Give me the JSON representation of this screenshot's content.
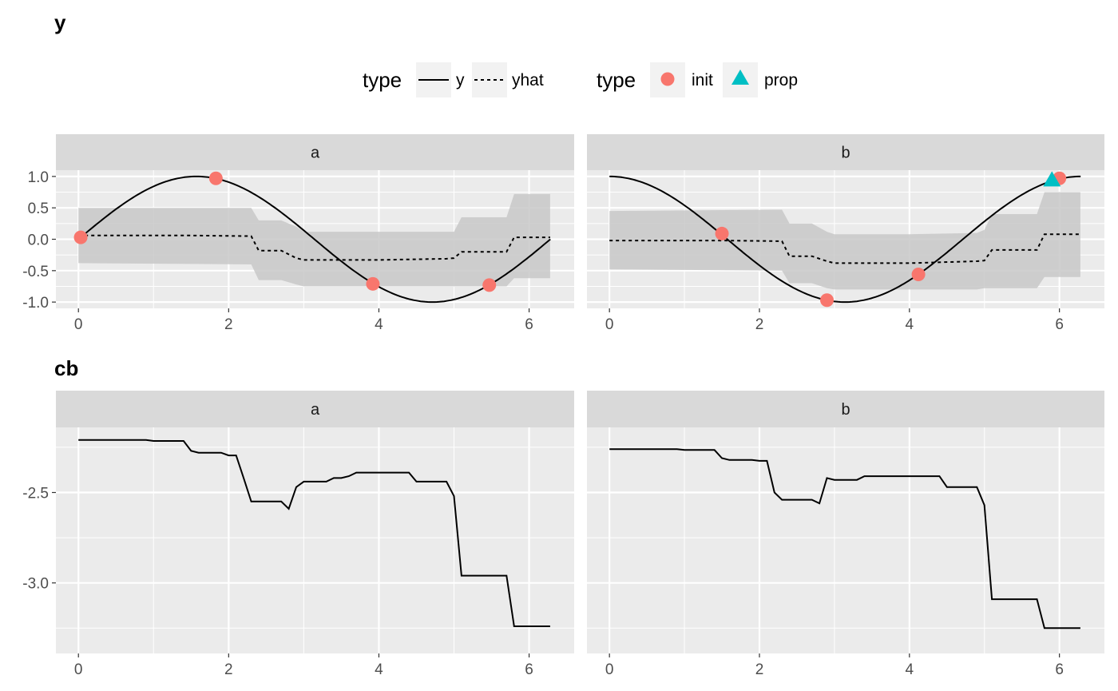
{
  "titles": [
    "y",
    "cb"
  ],
  "legend": {
    "groups": [
      {
        "title": "type",
        "kind": "line",
        "entries": [
          {
            "label": "y",
            "dash": "solid"
          },
          {
            "label": "yhat",
            "dash": "dotted"
          }
        ]
      },
      {
        "title": "type",
        "kind": "point",
        "entries": [
          {
            "label": "init",
            "shape": "circle",
            "color": "#F8766D"
          },
          {
            "label": "prop",
            "shape": "triangle",
            "color": "#00BFC4"
          }
        ]
      }
    ]
  },
  "colors": {
    "panel_bg": "#EBEBEB",
    "strip_bg": "#D9D9D9",
    "grid": "#FFFFFF",
    "ribbon": "#C8C8C8",
    "line": "#000000",
    "init": "#F8766D",
    "prop": "#00BFC4"
  },
  "chart_data": [
    {
      "type": "line",
      "title": "y",
      "facets": [
        "a",
        "b"
      ],
      "xlim": [
        -0.3,
        6.6
      ],
      "ylim": [
        -1.1,
        1.1
      ],
      "x_ticks": [
        0,
        2,
        4,
        6
      ],
      "y_ticks": [
        -1.0,
        -0.5,
        0.0,
        0.5,
        1.0
      ],
      "y_tick_labels": [
        "-1.0",
        "-0.5",
        "0.0",
        "0.5",
        "1.0"
      ],
      "panels": [
        {
          "facet": "a",
          "y_function": "sin",
          "yhat": {
            "x": [
              0,
              1.5,
              2.3,
              2.4,
              2.7,
              2.9,
              3.0,
              4.0,
              4.9,
              5.0,
              5.1,
              5.7,
              5.8,
              6.28
            ],
            "y": [
              0.06,
              0.06,
              0.05,
              -0.18,
              -0.18,
              -0.3,
              -0.33,
              -0.33,
              -0.31,
              -0.3,
              -0.2,
              -0.2,
              0.03,
              0.03
            ]
          },
          "band": {
            "x": [
              0,
              2.3,
              2.4,
              2.7,
              2.9,
              3.0,
              4.0,
              4.9,
              5.0,
              5.1,
              5.7,
              5.8,
              6.28
            ],
            "upper": [
              0.5,
              0.5,
              0.3,
              0.3,
              0.2,
              0.12,
              0.12,
              0.12,
              0.12,
              0.35,
              0.35,
              0.72,
              0.72
            ],
            "lower": [
              -0.38,
              -0.4,
              -0.65,
              -0.65,
              -0.72,
              -0.75,
              -0.75,
              -0.75,
              -0.75,
              -0.75,
              -0.75,
              -0.62,
              -0.62
            ]
          },
          "points": {
            "init": {
              "x": [
                0.03,
                1.83,
                3.92,
                5.47
              ],
              "y": [
                0.03,
                0.97,
                -0.71,
                -0.73
              ]
            },
            "prop": {
              "x": [],
              "y": []
            }
          }
        },
        {
          "facet": "b",
          "y_function": "cos",
          "yhat": {
            "x": [
              0,
              1.5,
              2.3,
              2.4,
              2.7,
              2.9,
              3.0,
              4.0,
              4.9,
              5.0,
              5.1,
              5.7,
              5.8,
              6.28
            ],
            "y": [
              -0.02,
              -0.02,
              -0.03,
              -0.27,
              -0.27,
              -0.35,
              -0.38,
              -0.38,
              -0.35,
              -0.34,
              -0.17,
              -0.17,
              0.08,
              0.08
            ]
          },
          "band": {
            "x": [
              0,
              2.3,
              2.4,
              2.7,
              2.9,
              3.0,
              4.0,
              4.9,
              5.0,
              5.1,
              5.7,
              5.8,
              6.28
            ],
            "upper": [
              0.45,
              0.47,
              0.25,
              0.25,
              0.12,
              0.08,
              0.08,
              0.1,
              0.15,
              0.4,
              0.4,
              0.75,
              0.75
            ],
            "lower": [
              -0.48,
              -0.5,
              -0.7,
              -0.7,
              -0.78,
              -0.8,
              -0.8,
              -0.8,
              -0.78,
              -0.78,
              -0.78,
              -0.6,
              -0.6
            ]
          },
          "points": {
            "init": {
              "x": [
                1.5,
                2.9,
                4.12,
                6.0
              ],
              "y": [
                0.09,
                -0.97,
                -0.56,
                0.97
              ]
            },
            "prop": {
              "x": [
                5.9
              ],
              "y": [
                0.93
              ]
            }
          }
        }
      ]
    },
    {
      "type": "line",
      "title": "cb",
      "facets": [
        "a",
        "b"
      ],
      "xlim": [
        -0.3,
        6.6
      ],
      "ylim": [
        -3.39,
        -2.14
      ],
      "x_ticks": [
        0,
        2,
        4,
        6
      ],
      "y_ticks": [
        -3.0,
        -2.5
      ],
      "y_tick_labels": [
        "-3.0",
        "-2.5"
      ],
      "panels": [
        {
          "facet": "a",
          "x": [
            0,
            0.9,
            1.0,
            1.4,
            1.5,
            1.6,
            1.7,
            1.9,
            2.0,
            2.1,
            2.2,
            2.3,
            2.4,
            2.7,
            2.8,
            2.9,
            3.0,
            3.2,
            3.3,
            3.4,
            3.5,
            3.6,
            3.7,
            4.0,
            4.1,
            4.3,
            4.4,
            4.5,
            4.8,
            4.9,
            5.0,
            5.1,
            5.2,
            5.7,
            5.8,
            6.28
          ],
          "y": [
            -2.21,
            -2.21,
            -2.215,
            -2.215,
            -2.27,
            -2.28,
            -2.28,
            -2.28,
            -2.295,
            -2.295,
            -2.42,
            -2.55,
            -2.55,
            -2.55,
            -2.59,
            -2.47,
            -2.44,
            -2.44,
            -2.44,
            -2.42,
            -2.42,
            -2.41,
            -2.39,
            -2.39,
            -2.39,
            -2.39,
            -2.39,
            -2.44,
            -2.44,
            -2.44,
            -2.52,
            -2.96,
            -2.96,
            -2.96,
            -3.24,
            -3.24
          ]
        },
        {
          "facet": "b",
          "x": [
            0,
            0.9,
            1.0,
            1.4,
            1.5,
            1.6,
            1.7,
            1.9,
            2.0,
            2.1,
            2.2,
            2.3,
            2.4,
            2.7,
            2.8,
            2.9,
            3.0,
            3.2,
            3.3,
            3.4,
            3.5,
            3.6,
            3.7,
            4.0,
            4.1,
            4.3,
            4.4,
            4.5,
            4.8,
            4.9,
            5.0,
            5.1,
            5.2,
            5.7,
            5.8,
            6.28
          ],
          "y": [
            -2.26,
            -2.26,
            -2.265,
            -2.265,
            -2.31,
            -2.32,
            -2.32,
            -2.32,
            -2.325,
            -2.325,
            -2.5,
            -2.54,
            -2.54,
            -2.54,
            -2.56,
            -2.42,
            -2.43,
            -2.43,
            -2.43,
            -2.41,
            -2.41,
            -2.41,
            -2.41,
            -2.41,
            -2.41,
            -2.41,
            -2.41,
            -2.47,
            -2.47,
            -2.47,
            -2.57,
            -3.09,
            -3.09,
            -3.09,
            -3.25,
            -3.25
          ]
        }
      ]
    }
  ]
}
